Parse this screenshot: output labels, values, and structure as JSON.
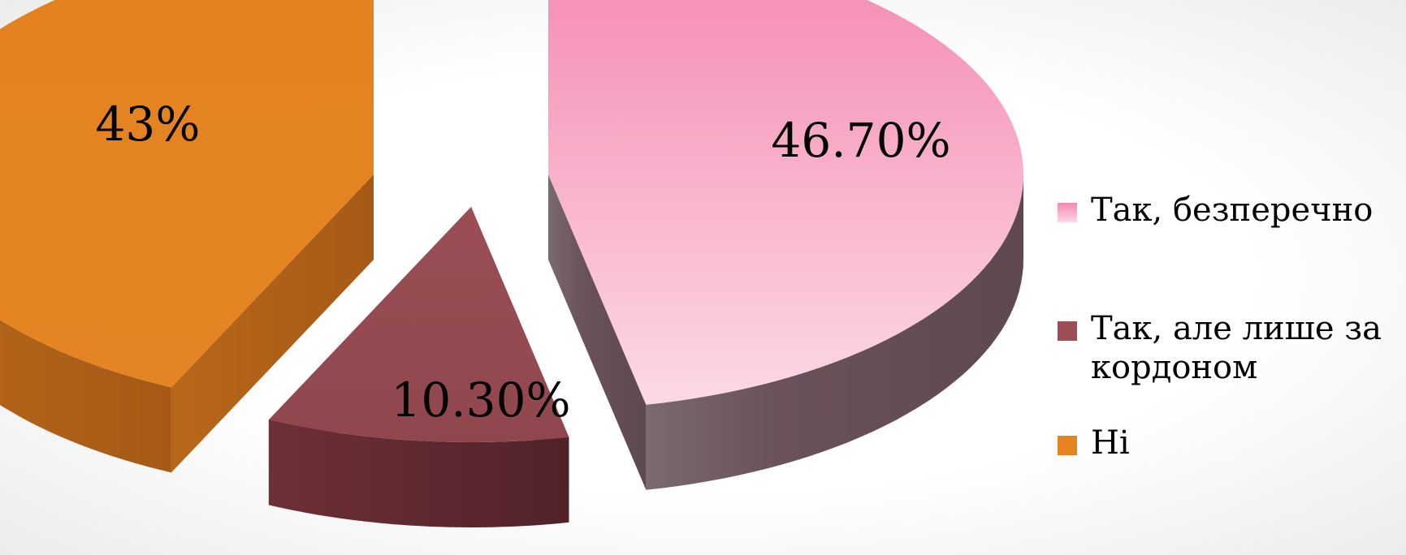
{
  "chart_data": {
    "type": "pie",
    "categories": [
      "Так, безперечно",
      "Так, але лише за кордоном",
      "Ні"
    ],
    "values": [
      46.7,
      10.3,
      43.0
    ],
    "data_labels": [
      "46.70%",
      "10.30%",
      "43%"
    ],
    "colors": [
      "#f7a9c6",
      "#9b4e55",
      "#e58321"
    ],
    "legend": {
      "position": "right",
      "entries": [
        {
          "lines": [
            "Так, безперечно"
          ]
        },
        {
          "lines": [
            "Так, але лише за",
            "кордоном"
          ]
        },
        {
          "lines": [
            "Ні"
          ]
        }
      ]
    }
  }
}
